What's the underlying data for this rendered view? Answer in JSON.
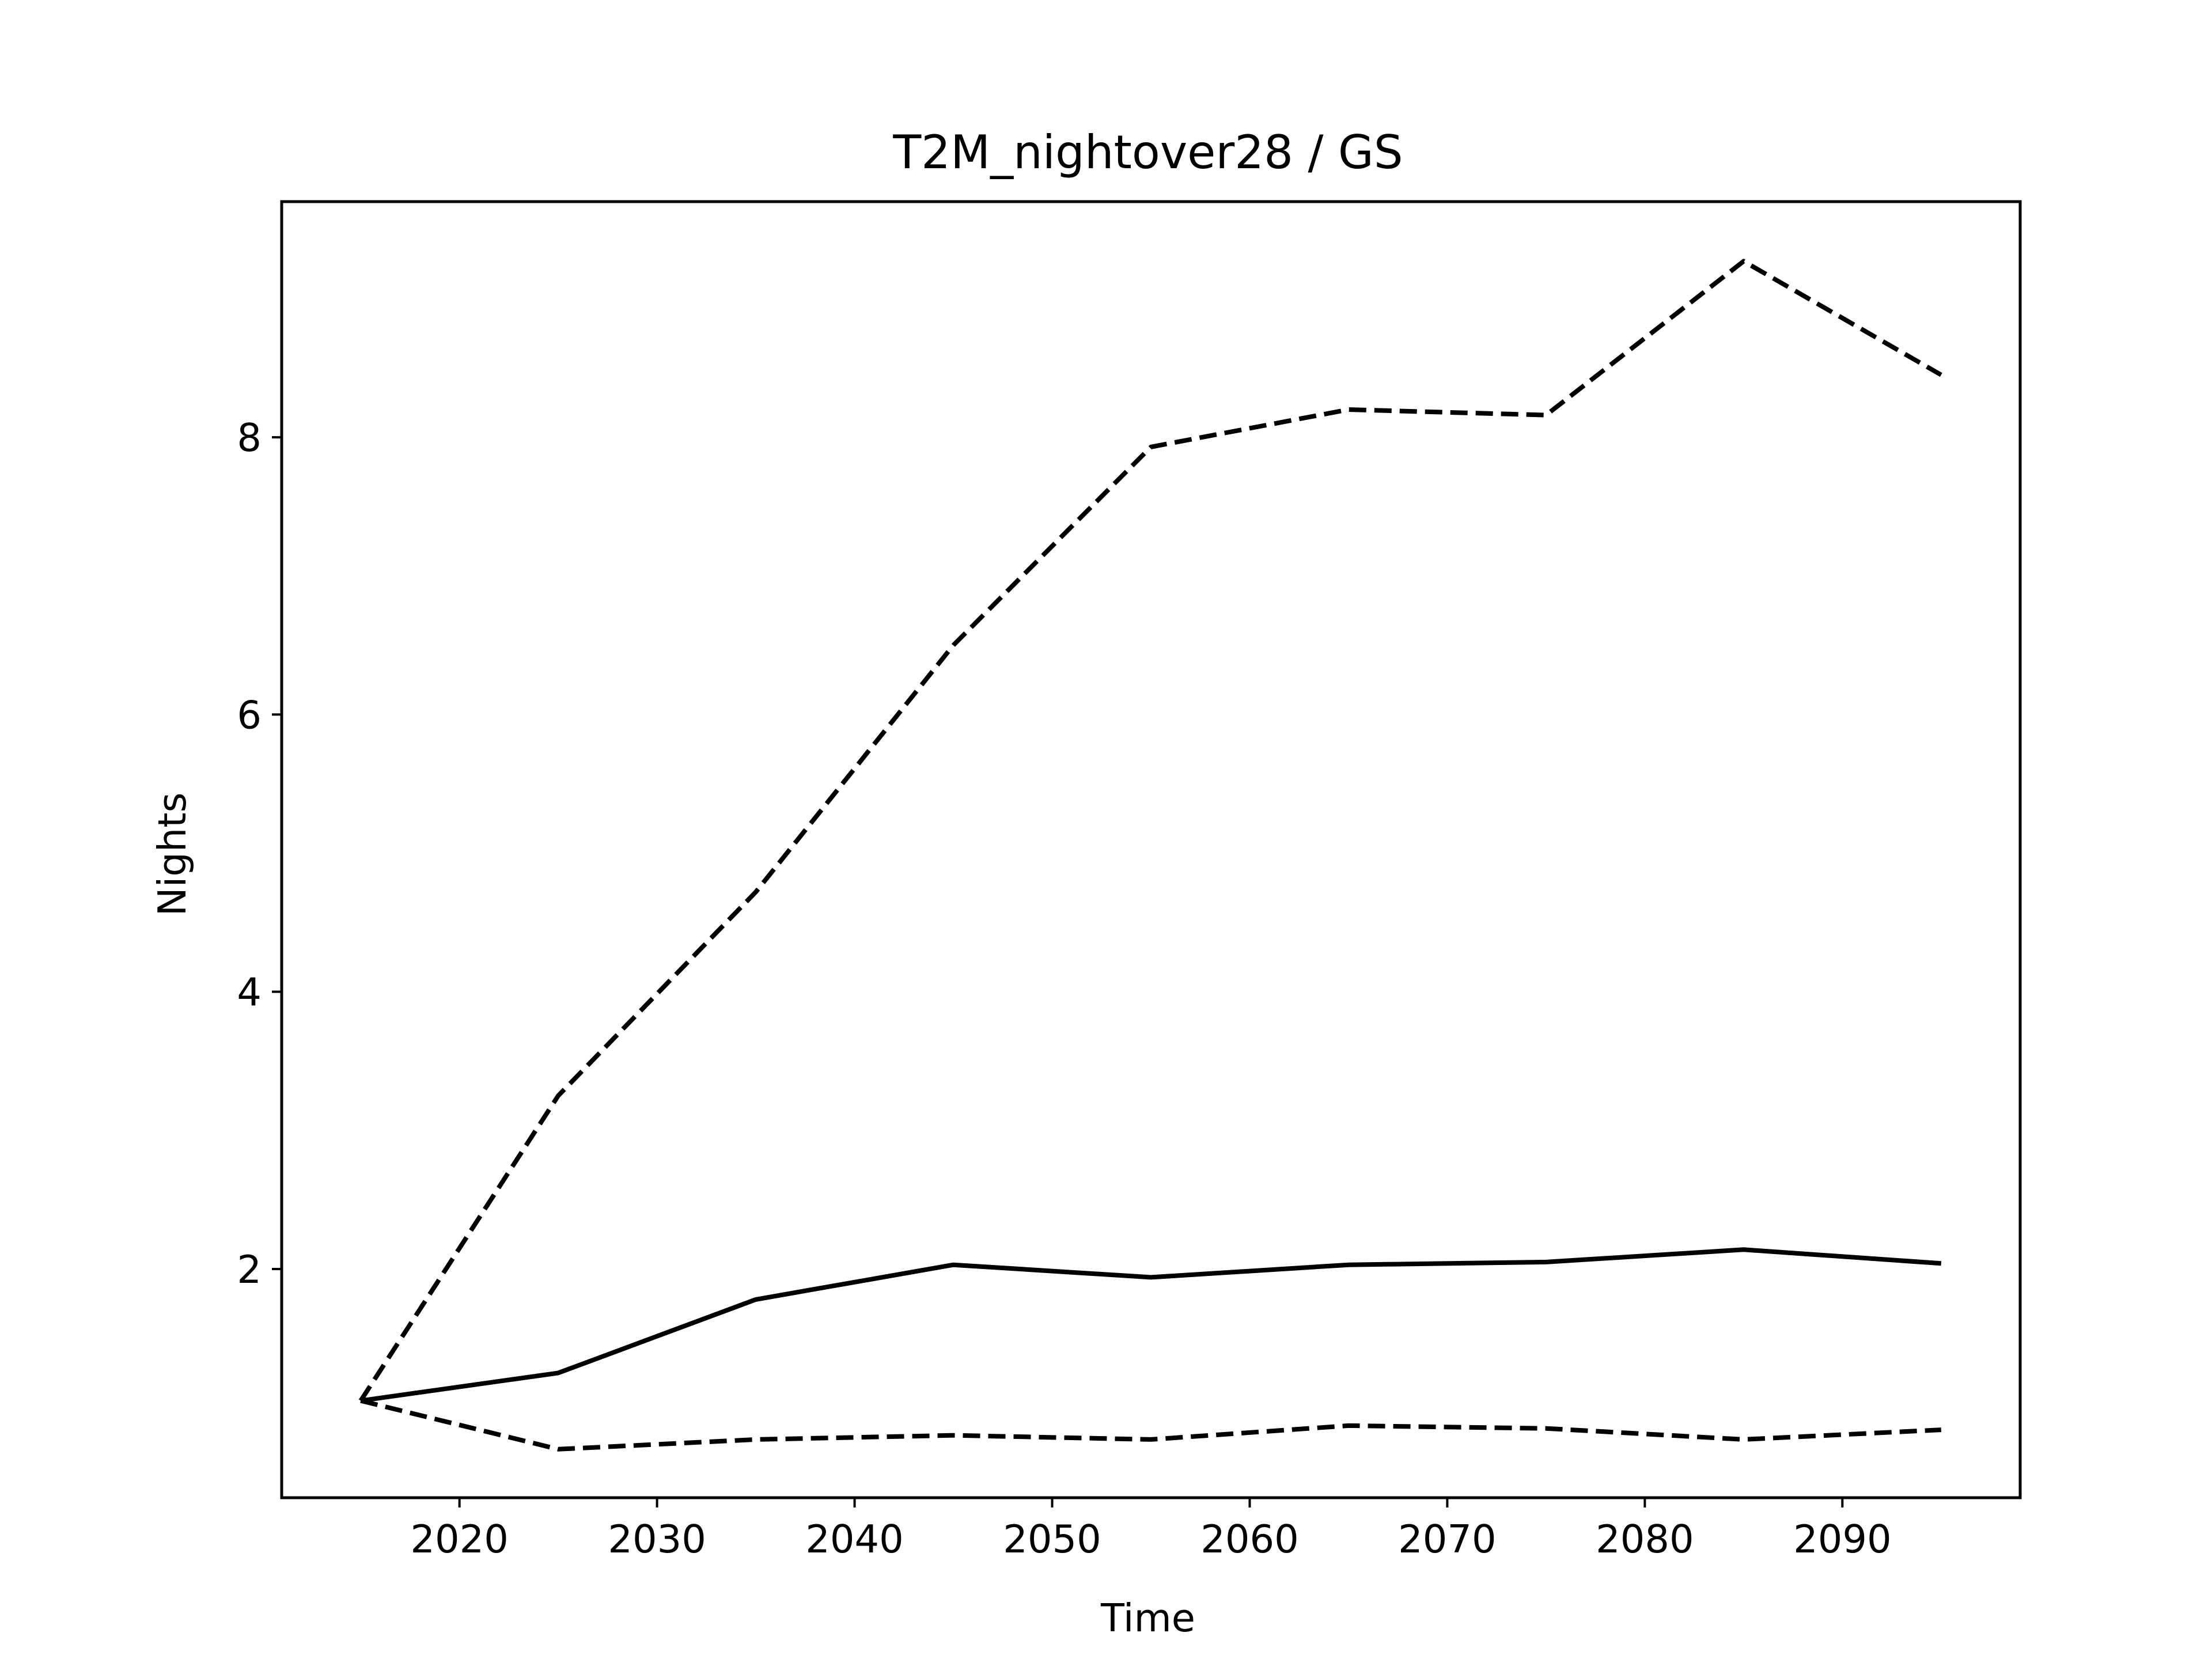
{
  "chart_data": {
    "type": "line",
    "title": "T2M_nightover28 / GS",
    "xlabel": "Time",
    "ylabel": "Nights",
    "xlim": [
      2011,
      2099
    ],
    "ylim": [
      0.35,
      9.7
    ],
    "xticks": [
      2020,
      2030,
      2040,
      2050,
      2060,
      2070,
      2080,
      2090
    ],
    "yticks": [
      2,
      4,
      6,
      8
    ],
    "grid": false,
    "x": [
      2015,
      2025,
      2035,
      2045,
      2055,
      2065,
      2075,
      2085,
      2095
    ],
    "series": [
      {
        "style": "dashed",
        "color": "#000000",
        "values": [
          1.05,
          3.25,
          4.72,
          6.5,
          7.93,
          8.2,
          8.16,
          9.27,
          8.45
        ]
      },
      {
        "style": "solid",
        "color": "#000000",
        "values": [
          1.05,
          1.25,
          1.78,
          2.03,
          1.94,
          2.03,
          2.05,
          2.14,
          2.04
        ]
      },
      {
        "style": "dashed",
        "color": "#000000",
        "values": [
          1.05,
          0.7,
          0.77,
          0.8,
          0.77,
          0.87,
          0.85,
          0.77,
          0.84
        ]
      }
    ]
  }
}
